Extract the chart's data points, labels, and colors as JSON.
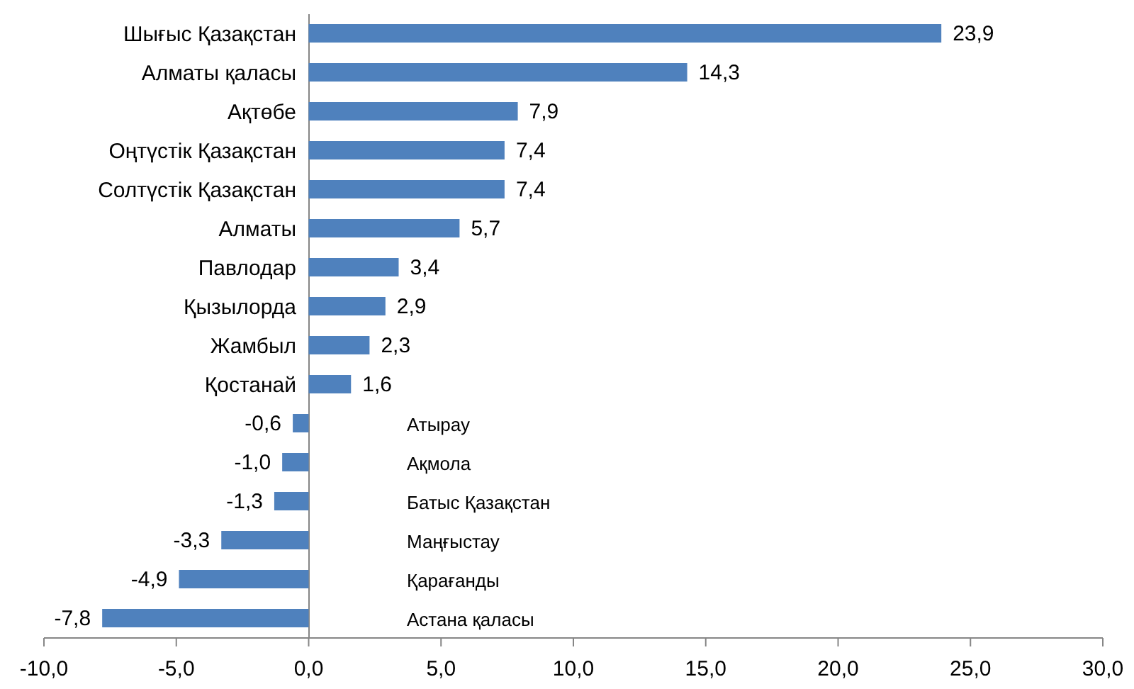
{
  "chart_data": {
    "type": "bar",
    "orientation": "horizontal",
    "categories": [
      "Шығыс  Қазақстан",
      "Алматы қаласы",
      "Ақтөбе",
      "Оңтүстік Қазақстан",
      "Солтүстік  Қазақстан",
      "Алматы",
      "Павлодар",
      "Қызылорда",
      "Жамбыл",
      "Қостанай",
      "Атырау",
      "Ақмола",
      "Батыс Қазақстан",
      "Маңғыстау",
      "Қарағанды",
      "Астана қаласы"
    ],
    "values": [
      23.9,
      14.3,
      7.9,
      7.4,
      7.4,
      5.7,
      3.4,
      2.9,
      2.3,
      1.6,
      -0.6,
      -1.0,
      -1.3,
      -3.3,
      -4.9,
      -7.8
    ],
    "value_labels": [
      "23,9",
      "14,3",
      "7,9",
      "7,4",
      "7,4",
      "5,7",
      "3,4",
      "2,9",
      "2,3",
      "1,6",
      "-0,6",
      "-1,0",
      "-1,3",
      "-3,3",
      "-4,9",
      "-7,8"
    ],
    "color": "#4f81bd",
    "xlim": [
      -10,
      30
    ],
    "xticks": [
      {
        "value": -10,
        "label": "-10,0"
      },
      {
        "value": -5,
        "label": "-5,0"
      },
      {
        "value": 0,
        "label": "0,0"
      },
      {
        "value": 5,
        "label": "5,0"
      },
      {
        "value": 10,
        "label": "10,0"
      },
      {
        "value": 15,
        "label": "15,0"
      },
      {
        "value": 20,
        "label": "20,0"
      },
      {
        "value": 25,
        "label": "25,0"
      },
      {
        "value": 30,
        "label": "30,0"
      }
    ],
    "grid": false,
    "legend": false
  }
}
